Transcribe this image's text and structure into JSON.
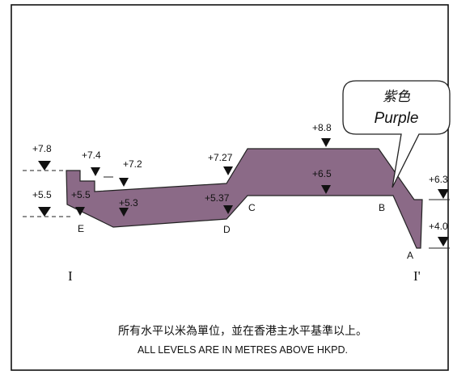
{
  "colors": {
    "fill": "#8B6A87",
    "stroke": "#222222",
    "frame": "#111111"
  },
  "callout": {
    "label_zh": "紫色",
    "label_en": "Purple"
  },
  "levels": {
    "top_far_left": "+7.8",
    "top_left_step": "+7.4",
    "top_left_mid": "+7.2",
    "top_mid": "+7.27",
    "top_peak": "+8.8",
    "top_right": "+6.3",
    "base_far_left": "+5.5",
    "base_left": "+5.5",
    "base_left_mid": "+5.3",
    "base_mid": "+5.37",
    "base_center": "+6.5",
    "base_right": "+4.0"
  },
  "points": {
    "a": "A",
    "b": "B",
    "c": "C",
    "d": "D",
    "e": "E"
  },
  "section": {
    "start": "I",
    "end": "I'"
  },
  "note": {
    "zh": "所有水平以米為單位，並在香港主水平基準以上。",
    "en": "ALL LEVELS ARE IN METRES ABOVE HKPD."
  },
  "icons": {
    "marker": "level-triangle-icon"
  }
}
